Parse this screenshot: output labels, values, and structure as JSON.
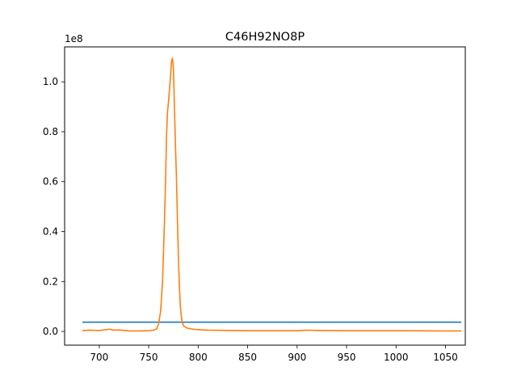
{
  "chart_data": {
    "type": "line",
    "title": "C46H92NO8P",
    "xlabel": "",
    "ylabel": "",
    "y_offset_label": "1e8",
    "xlim": [
      665,
      1070
    ],
    "ylim": [
      -0.055,
      1.14
    ],
    "y_scale_multiplier": 100000000,
    "grid": false,
    "x_ticks": [
      700,
      750,
      800,
      850,
      900,
      950,
      1000,
      1050
    ],
    "x_tick_labels": [
      "700",
      "750",
      "800",
      "850",
      "900",
      "950",
      "1000",
      "1050"
    ],
    "y_ticks": [
      0.0,
      0.2,
      0.4,
      0.6,
      0.8,
      1.0
    ],
    "y_tick_labels": [
      "0.0",
      "0.2",
      "0.4",
      "0.6",
      "0.8",
      "1.0"
    ],
    "series": [
      {
        "color": "#1f77b4",
        "x": [
          683,
          1066
        ],
        "y": [
          0.037,
          0.037
        ]
      },
      {
        "color": "#ff7f0e",
        "x": [
          683,
          690,
          700,
          705,
          710,
          715,
          720,
          725,
          730,
          740,
          750,
          755,
          758,
          760,
          762,
          764,
          766,
          767,
          768,
          769,
          770,
          771,
          772,
          773,
          774,
          775,
          776,
          777,
          778,
          779,
          780,
          781,
          782,
          783,
          784,
          785,
          786,
          788,
          790,
          795,
          800,
          810,
          830,
          850,
          900,
          910,
          920,
          950,
          1000,
          1050,
          1066
        ],
        "y": [
          0.003,
          0.005,
          0.004,
          0.006,
          0.009,
          0.005,
          0.006,
          0.004,
          0.002,
          0.002,
          0.003,
          0.005,
          0.01,
          0.03,
          0.08,
          0.2,
          0.45,
          0.6,
          0.78,
          0.88,
          0.92,
          0.97,
          1.02,
          1.08,
          1.095,
          1.05,
          0.9,
          0.75,
          0.62,
          0.45,
          0.3,
          0.18,
          0.1,
          0.06,
          0.035,
          0.025,
          0.02,
          0.015,
          0.012,
          0.009,
          0.007,
          0.005,
          0.004,
          0.003,
          0.003,
          0.005,
          0.004,
          0.003,
          0.003,
          0.002,
          0.002
        ]
      }
    ]
  }
}
